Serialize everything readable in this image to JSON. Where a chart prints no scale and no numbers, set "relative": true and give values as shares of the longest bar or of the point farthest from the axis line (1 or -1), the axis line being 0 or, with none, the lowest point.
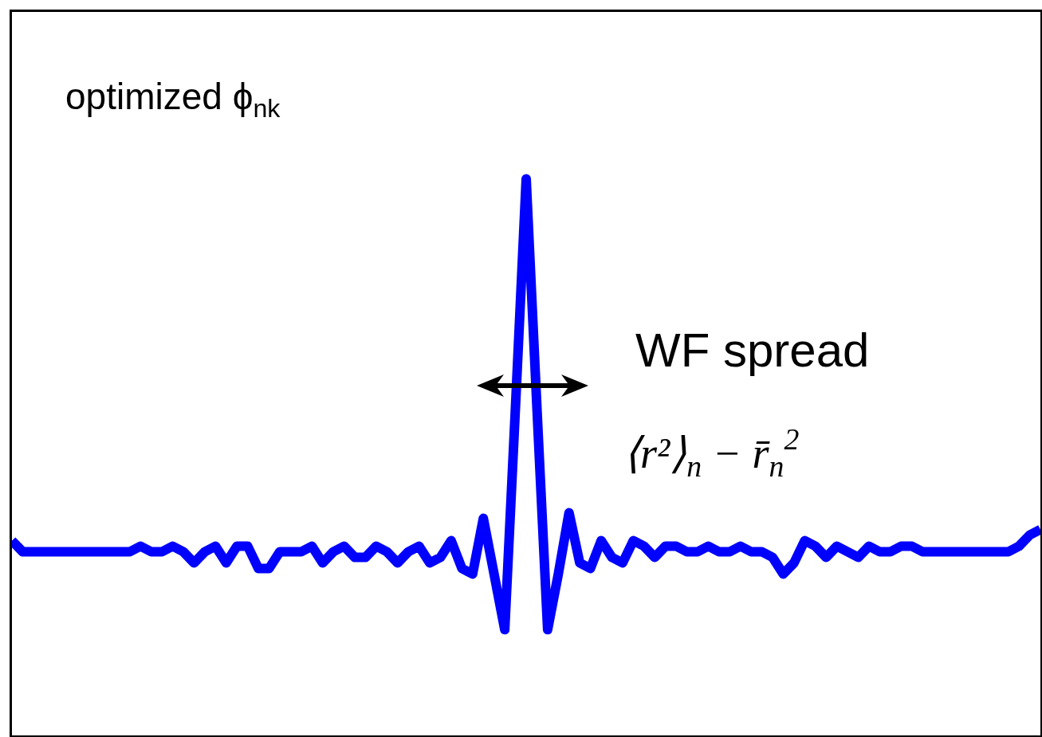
{
  "chart_data": {
    "type": "line",
    "relative": true,
    "grid": false,
    "marker": "none",
    "line_style": "solid",
    "categories": [
      null,
      null,
      null,
      null,
      null,
      null,
      null,
      null,
      null,
      null,
      null,
      null,
      null,
      null,
      null,
      null,
      null,
      null,
      null,
      null,
      null,
      null,
      null,
      null,
      null,
      null,
      null,
      null,
      null,
      null,
      null,
      null,
      null,
      null,
      null,
      null,
      null,
      null,
      null,
      null,
      null,
      null,
      null,
      null,
      null,
      null,
      null,
      null,
      null,
      null,
      null,
      null,
      null,
      null,
      null,
      null,
      null,
      null,
      null,
      null,
      null,
      null,
      null,
      null,
      null,
      null,
      null,
      null,
      null,
      null,
      null,
      null,
      null,
      null,
      null,
      null,
      null,
      null,
      null,
      null,
      null,
      null,
      null,
      null,
      null,
      null,
      null,
      null,
      null,
      null,
      null,
      null,
      null,
      null,
      null,
      null,
      null
    ],
    "series": [
      {
        "color": "#0000ff",
        "values": [
          0.35,
          0.33,
          0.33,
          0.33,
          0.33,
          0.33,
          0.33,
          0.33,
          0.33,
          0.33,
          0.33,
          0.33,
          0.34,
          0.33,
          0.33,
          0.34,
          0.33,
          0.31,
          0.33,
          0.34,
          0.31,
          0.34,
          0.34,
          0.3,
          0.3,
          0.33,
          0.33,
          0.33,
          0.34,
          0.31,
          0.33,
          0.34,
          0.32,
          0.32,
          0.34,
          0.33,
          0.31,
          0.33,
          0.34,
          0.31,
          0.32,
          0.35,
          0.3,
          0.29,
          0.39,
          0.29,
          0.19,
          0.59,
          1,
          0.59,
          0.19,
          0.29,
          0.4,
          0.31,
          0.3,
          0.35,
          0.32,
          0.31,
          0.35,
          0.34,
          0.32,
          0.34,
          0.34,
          0.33,
          0.33,
          0.34,
          0.33,
          0.33,
          0.34,
          0.33,
          0.33,
          0.32,
          0.29,
          0.31,
          0.35,
          0.34,
          0.32,
          0.34,
          0.33,
          0.32,
          0.34,
          0.33,
          0.33,
          0.34,
          0.34,
          0.33,
          0.33,
          0.33,
          0.33,
          0.33,
          0.33,
          0.33,
          0.33,
          0.33,
          0.34,
          0.36,
          0.37
        ]
      }
    ],
    "annotations": [
      "optimized ϕ$_{nk}$",
      "WF spread",
      "⟨r²⟩$_{n}$ − r̄$_{n}$$^{2}$"
    ]
  }
}
